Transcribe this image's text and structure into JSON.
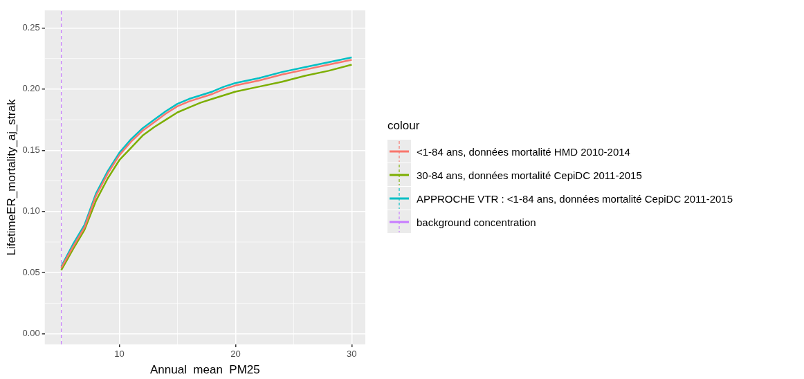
{
  "chart_data": {
    "type": "line",
    "xlabel": "Annual  mean  PM25",
    "ylabel": "LifetimeER_mortality_aj_strak",
    "legend_title": "colour",
    "legend": "right",
    "grid": true,
    "marker": "none",
    "line_style": "solid",
    "x": [
      5,
      6,
      7,
      8,
      9,
      10,
      11,
      12,
      13,
      14,
      15,
      16,
      17,
      18,
      19,
      20,
      22,
      24,
      26,
      28,
      30
    ],
    "xlim": [
      3.58,
      31.17
    ],
    "xticks": [
      10,
      20,
      30
    ],
    "ylim": [
      -0.0087,
      0.2644
    ],
    "yticks": [
      {
        "value": 0,
        "label": "0.00"
      },
      {
        "value": 0.05,
        "label": "0.05"
      },
      {
        "value": 0.1,
        "label": "0.10"
      },
      {
        "value": 0.15,
        "label": "0.15"
      },
      {
        "value": 0.2,
        "label": "0.20"
      },
      {
        "value": 0.25,
        "label": "0.25"
      }
    ],
    "series": [
      {
        "name": "<1-84 ans, données mortalité HMD 2010-2014",
        "color": "#f8766d",
        "values": [
          0.054,
          0.071,
          0.087,
          0.113,
          0.131,
          0.146,
          0.157,
          0.166,
          0.173,
          0.18,
          0.186,
          0.19,
          0.193,
          0.196,
          0.2,
          0.203,
          0.207,
          0.212,
          0.216,
          0.22,
          0.224
        ]
      },
      {
        "name": "30-84 ans, données mortalité CepiDC 2011-2015",
        "color": "#7cae00",
        "values": [
          0.052,
          0.069,
          0.085,
          0.109,
          0.127,
          0.142,
          0.152,
          0.162,
          0.169,
          0.175,
          0.181,
          0.185,
          0.189,
          0.192,
          0.195,
          0.198,
          0.202,
          0.206,
          0.211,
          0.215,
          0.22
        ]
      },
      {
        "name": "APPROCHE VTR : <1-84 ans, données mortalité CepiDC 2011-2015",
        "color": "#00bfc4",
        "values": [
          0.055,
          0.073,
          0.089,
          0.115,
          0.133,
          0.148,
          0.159,
          0.168,
          0.175,
          0.182,
          0.188,
          0.192,
          0.195,
          0.198,
          0.202,
          0.205,
          0.209,
          0.214,
          0.218,
          0.222,
          0.226
        ]
      },
      {
        "name": "background concentration",
        "color": "#c77cff",
        "line_style": "dashed",
        "x": [
          5,
          5
        ],
        "values": [
          -0.0087,
          0.2644
        ]
      }
    ]
  }
}
